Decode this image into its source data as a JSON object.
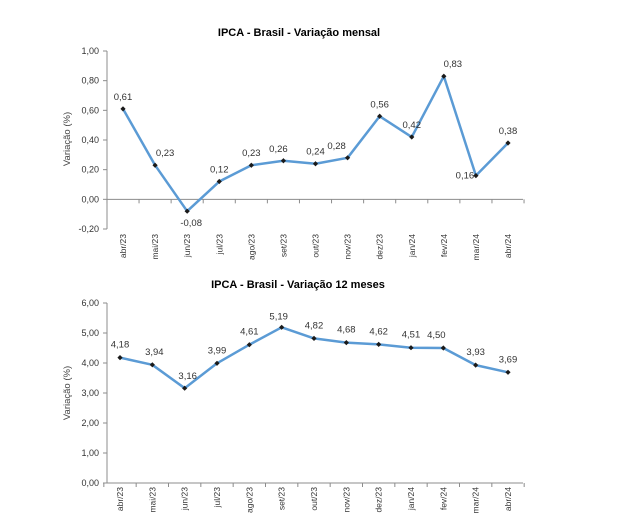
{
  "chart_data": [
    {
      "type": "line",
      "title": "IPCA - Brasil - Variação mensal",
      "ylabel": "Variação (%)",
      "categories": [
        "abr/23",
        "mai/23",
        "jun/23",
        "jul/23",
        "ago/23",
        "set/23",
        "out/23",
        "nov/23",
        "dez/23",
        "jan/24",
        "fev/24",
        "mar/24",
        "abr/24"
      ],
      "values": [
        0.61,
        0.23,
        -0.08,
        0.12,
        0.23,
        0.26,
        0.24,
        0.28,
        0.56,
        0.42,
        0.83,
        0.16,
        0.38
      ],
      "value_labels": [
        "0,61",
        "0,23",
        "-0,08",
        "0,12",
        "0,23",
        "0,26",
        "0,24",
        "0,28",
        "0,56",
        "0,42",
        "0,83",
        "0,16",
        "0,38"
      ],
      "ylim": [
        -0.2,
        1.0
      ],
      "yticks": [
        -0.2,
        0.0,
        0.2,
        0.4,
        0.6,
        0.8,
        1.0
      ],
      "ytick_labels": [
        "-0,20",
        "0,00",
        "0,20",
        "0,40",
        "0,60",
        "0,80",
        "1,00"
      ],
      "line_color": "#5b9bd5",
      "marker_color": "#1a1a1a",
      "grid": false
    },
    {
      "type": "line",
      "title": "IPCA - Brasil - Variação 12 meses",
      "ylabel": "Variação (%)",
      "categories": [
        "abr/23",
        "mai/23",
        "jun/23",
        "jul/23",
        "ago/23",
        "set/23",
        "out/23",
        "nov/23",
        "dez/23",
        "jan/24",
        "fev/24",
        "mar/24",
        "abr/24"
      ],
      "values": [
        4.18,
        3.94,
        3.16,
        3.99,
        4.61,
        5.19,
        4.82,
        4.68,
        4.62,
        4.51,
        4.5,
        3.93,
        3.69
      ],
      "value_labels": [
        "4,18",
        "3,94",
        "3,16",
        "3,99",
        "4,61",
        "5,19",
        "4,82",
        "4,68",
        "4,62",
        "4,51",
        "4,50",
        "3,93",
        "3,69"
      ],
      "ylim": [
        0.0,
        6.0
      ],
      "yticks": [
        0,
        1,
        2,
        3,
        4,
        5,
        6
      ],
      "ytick_labels": [
        "0,00",
        "1,00",
        "2,00",
        "3,00",
        "4,00",
        "5,00",
        "6,00"
      ],
      "line_color": "#5b9bd5",
      "marker_color": "#1a1a1a",
      "grid": false
    }
  ]
}
